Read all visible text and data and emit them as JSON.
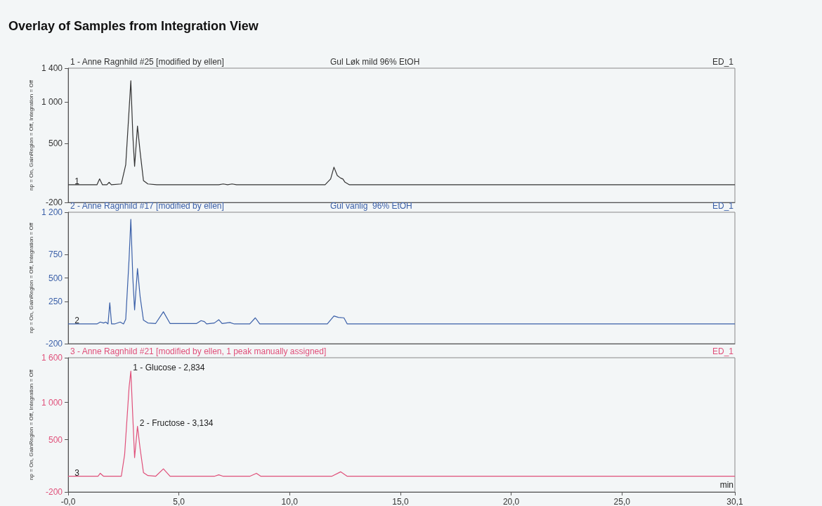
{
  "chart_data": [
    {
      "type": "line",
      "title": "Overlay of Samples from Integration View",
      "subtitle": "1 - Anne Ragnhild #25 [modified by ellen]",
      "ylabel": "np = On, GainRegion = Off, Integration = Off",
      "annotations": [
        "Gul Løk mild 96% EtOH",
        "ED_1",
        {
          "text": "1",
          "x": 0.2,
          "y": 10
        }
      ],
      "marker": "none",
      "tick_labels": "y",
      "xlim": [
        0,
        30.1
      ],
      "ylim": [
        -200,
        1400
      ],
      "yticks": [
        -200,
        500,
        {
          "value": 1000,
          "label": "1 000"
        },
        {
          "value": 1400,
          "label": "1 400"
        }
      ],
      "x": [
        0,
        1.3,
        1.42,
        1.55,
        1.75,
        1.85,
        1.95,
        2.4,
        2.6,
        2.75,
        2.83,
        2.92,
        3.0,
        3.13,
        3.25,
        3.4,
        3.6,
        4.0,
        6.8,
        7.0,
        7.2,
        7.4,
        7.6,
        11.6,
        11.85,
        12.0,
        12.15,
        12.3,
        12.4,
        12.5,
        12.7,
        30.1
      ],
      "series": [
        {
          "color": "#333333",
          "values": [
            10,
            10,
            80,
            10,
            10,
            40,
            10,
            20,
            250,
            900,
            1250,
            600,
            230,
            710,
            400,
            60,
            20,
            10,
            10,
            20,
            10,
            20,
            10,
            10,
            80,
            220,
            120,
            90,
            80,
            40,
            10,
            10
          ]
        }
      ]
    },
    {
      "type": "line",
      "subtitle": "2 - Anne Ragnhild #17 [modified by ellen]",
      "ylabel": "np = On, GainRegion = Off, Integration = Off",
      "annotations": [
        "Gul vanlig  96% EtOH",
        "ED_1",
        {
          "text": "2",
          "x": 0.2,
          "y": 10
        }
      ],
      "marker": "none",
      "tick_labels": "y",
      "xlim": [
        0,
        30.1
      ],
      "ylim": [
        -200,
        1200
      ],
      "yticks": [
        -200,
        250,
        500,
        750,
        {
          "value": 1200,
          "label": "1 200"
        }
      ],
      "x": [
        0,
        1.3,
        1.45,
        1.6,
        1.7,
        1.8,
        1.88,
        1.96,
        2.1,
        2.35,
        2.5,
        2.6,
        2.75,
        2.83,
        2.92,
        3.0,
        3.13,
        3.25,
        3.4,
        3.6,
        3.95,
        4.3,
        4.6,
        5.8,
        6.0,
        6.15,
        6.25,
        6.6,
        6.8,
        6.95,
        7.3,
        7.5,
        8.2,
        8.45,
        8.65,
        11.7,
        12.0,
        12.2,
        12.45,
        12.6,
        30.1
      ],
      "series": [
        {
          "color": "#3a5fa8",
          "values": [
            10,
            10,
            30,
            20,
            30,
            10,
            235,
            10,
            10,
            30,
            10,
            60,
            700,
            1125,
            500,
            160,
            600,
            300,
            50,
            20,
            15,
            140,
            15,
            15,
            45,
            35,
            10,
            20,
            55,
            15,
            25,
            10,
            10,
            75,
            10,
            10,
            95,
            80,
            75,
            10,
            10
          ]
        }
      ]
    },
    {
      "type": "line",
      "subtitle": "3 - Anne Ragnhild #21 [modified by ellen, 1 peak manually assigned]",
      "ylabel": "np = On, GainRegion = Off, Integration = Off",
      "xlabel": "min",
      "annotations": [
        "ED_1",
        {
          "text": "1 - Glucose - 2,834",
          "x": 2.834,
          "y": 1420
        },
        {
          "text": "2 - Fructose - 3,134",
          "x": 3.134,
          "y": 680
        },
        {
          "text": "3",
          "x": 0.2,
          "y": 10
        }
      ],
      "marker": "none",
      "xlim": [
        0,
        30.1
      ],
      "xticks": [
        {
          "value": 0,
          "label": "-0,0"
        },
        {
          "value": 5,
          "label": "5,0"
        },
        {
          "value": 10,
          "label": "10,0"
        },
        {
          "value": 15,
          "label": "15,0"
        },
        {
          "value": 20,
          "label": "20,0"
        },
        {
          "value": 25,
          "label": "25,0"
        },
        {
          "value": 30.1,
          "label": "30,1"
        }
      ],
      "ylim": [
        -200,
        1600
      ],
      "yticks": [
        -200,
        500,
        {
          "value": 1000,
          "label": "1 000"
        },
        {
          "value": 1600,
          "label": "1 600"
        }
      ],
      "x": [
        0,
        1.35,
        1.45,
        1.6,
        2.4,
        2.55,
        2.75,
        2.83,
        2.92,
        3.0,
        3.13,
        3.25,
        3.4,
        3.6,
        3.95,
        4.3,
        4.6,
        6.6,
        6.8,
        7.0,
        8.2,
        8.5,
        8.7,
        11.9,
        12.3,
        12.6,
        30.1
      ],
      "series": [
        {
          "color": "#e0507a",
          "values": [
            10,
            10,
            50,
            10,
            10,
            300,
            1200,
            1420,
            800,
            260,
            680,
            380,
            60,
            20,
            10,
            110,
            10,
            10,
            30,
            10,
            10,
            50,
            10,
            10,
            70,
            10,
            10
          ]
        }
      ]
    }
  ]
}
